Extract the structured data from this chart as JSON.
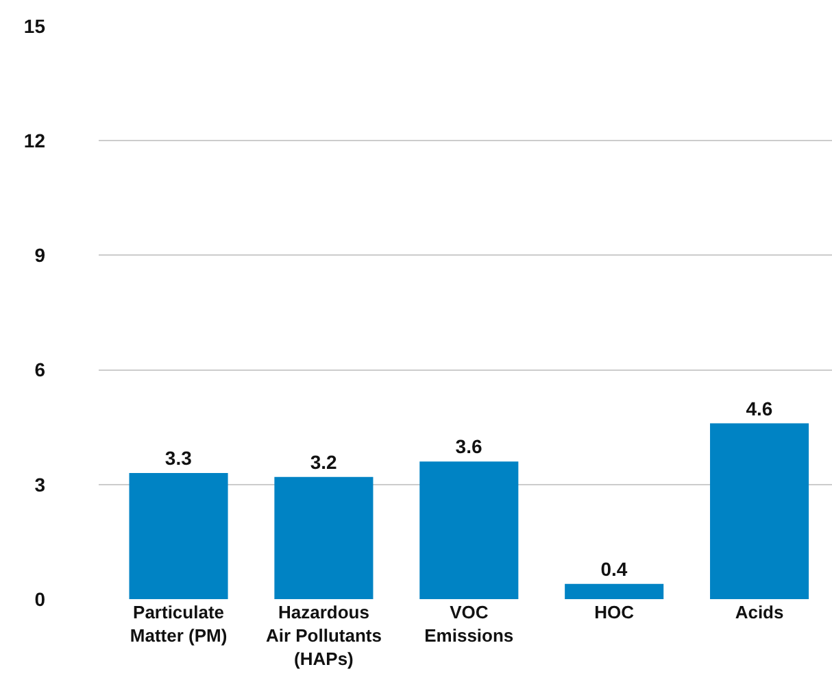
{
  "chart_data": {
    "type": "bar",
    "categories": [
      "Particulate\nMatter (PM)",
      "Hazardous\nAir Pollutants\n(HAPs)",
      "VOC\nEmissions",
      "HOC",
      "Acids"
    ],
    "values": [
      3.3,
      3.2,
      3.6,
      0.4,
      4.6
    ],
    "color": "#0083c4",
    "ylim": [
      0,
      15
    ],
    "yticks": [
      0,
      3,
      6,
      9,
      12,
      15
    ],
    "grid": "y",
    "data_labels": true
  }
}
